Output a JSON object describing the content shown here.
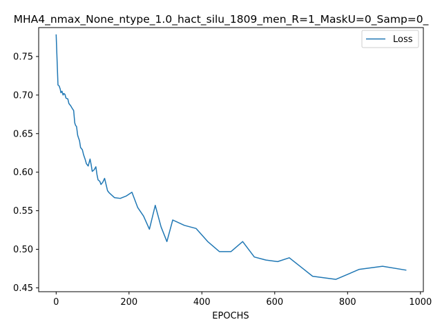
{
  "chart_data": {
    "type": "line",
    "title": "MHA4_nmax_None_ntype_1.0_hact_silu_1809_men_R=1_MaskU=0_Samp=0_",
    "xlabel": "EPOCHS",
    "ylabel": "",
    "xlim": [
      -48,
      1008
    ],
    "ylim": [
      0.445,
      0.7875
    ],
    "xticks": [
      0,
      200,
      400,
      600,
      800,
      1000
    ],
    "xtick_labels": [
      "0",
      "200",
      "400",
      "600",
      "800",
      "1000"
    ],
    "yticks": [
      0.45,
      0.5,
      0.55,
      0.6,
      0.65,
      0.7,
      0.75
    ],
    "ytick_labels": [
      "0.45",
      "0.50",
      "0.55",
      "0.60",
      "0.65",
      "0.70",
      "0.75"
    ],
    "grid": false,
    "legend": {
      "position": "top-right",
      "entries": [
        "Loss"
      ]
    },
    "series": [
      {
        "name": "Loss",
        "color": "#1f77b4",
        "x": [
          0,
          5,
          8,
          11,
          13,
          16,
          19,
          21,
          24,
          27,
          32,
          35,
          40,
          45,
          48,
          51,
          53,
          56,
          59,
          61,
          64,
          67,
          72,
          75,
          80,
          83,
          88,
          93,
          96,
          99,
          104,
          109,
          112,
          115,
          120,
          123,
          128,
          133,
          136,
          141,
          146,
          160,
          176,
          192,
          208,
          224,
          240,
          256,
          272,
          288,
          304,
          320,
          352,
          384,
          416,
          448,
          480,
          512,
          544,
          576,
          608,
          640,
          672,
          704,
          768,
          832,
          896,
          960
        ],
        "y": [
          0.778,
          0.713,
          0.712,
          0.708,
          0.703,
          0.705,
          0.7,
          0.702,
          0.701,
          0.696,
          0.695,
          0.689,
          0.686,
          0.682,
          0.68,
          0.664,
          0.661,
          0.659,
          0.648,
          0.645,
          0.641,
          0.632,
          0.629,
          0.623,
          0.616,
          0.611,
          0.608,
          0.617,
          0.61,
          0.601,
          0.603,
          0.607,
          0.597,
          0.59,
          0.588,
          0.584,
          0.587,
          0.592,
          0.586,
          0.576,
          0.573,
          0.567,
          0.566,
          0.569,
          0.574,
          0.554,
          0.543,
          0.526,
          0.557,
          0.529,
          0.51,
          0.538,
          0.531,
          0.527,
          0.51,
          0.497,
          0.497,
          0.51,
          0.49,
          0.486,
          0.484,
          0.489,
          0.477,
          0.465,
          0.461,
          0.474,
          0.478,
          0.473
        ]
      }
    ]
  }
}
